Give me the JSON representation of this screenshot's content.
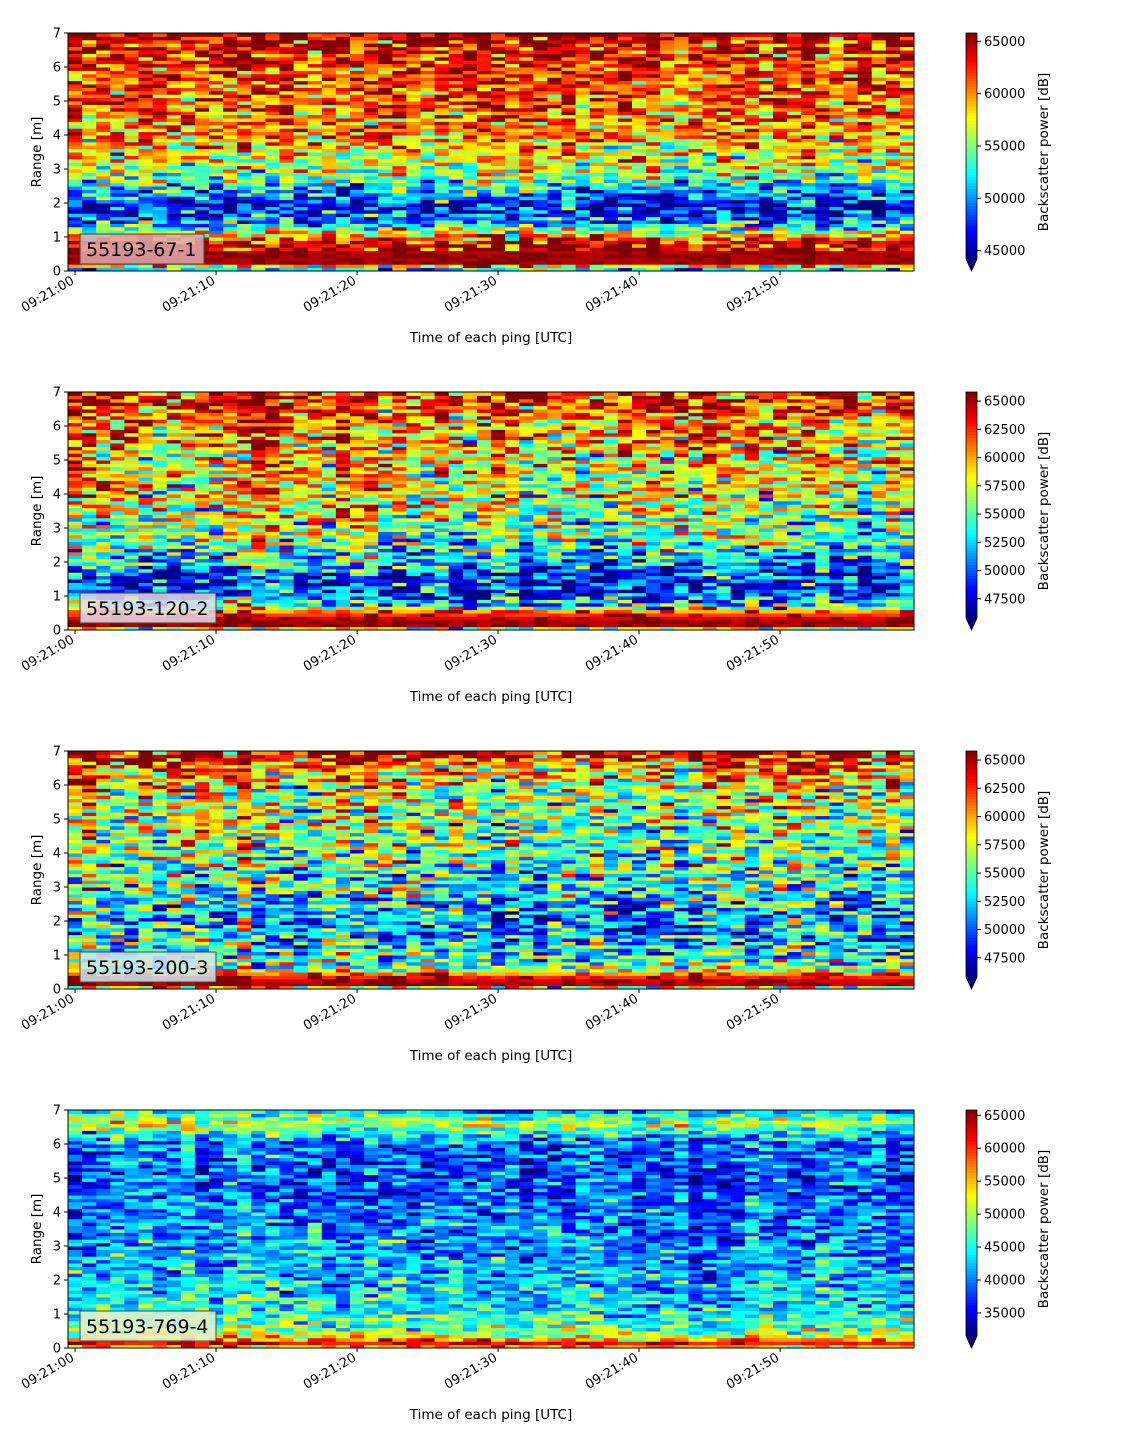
{
  "figure": {
    "x_tick_labels": [
      "09:21:00",
      "09:21:10",
      "09:21:20",
      "09:21:30",
      "09:21:40",
      "09:21:50"
    ],
    "xlabel": "Time of each ping [UTC]",
    "ylabel": "Range [m]",
    "colorbar_label": "Backscatter power [dB]",
    "colormap": "jet",
    "colormap_stops": [
      "#00007f",
      "#0000ff",
      "#007fff",
      "#00ffff",
      "#7fff7f",
      "#ffff00",
      "#ff7f00",
      "#ff0000",
      "#7f0000"
    ]
  },
  "chart_data": [
    {
      "type": "heatmap",
      "label": "55193-67-1",
      "label_box_color": "#e0aab0",
      "xlabel": "Time of each ping [UTC]",
      "ylabel": "Range [m]",
      "ylim": [
        0,
        7
      ],
      "yticks": [
        0,
        1,
        2,
        3,
        4,
        5,
        6,
        7
      ],
      "xlim": [
        "09:21:00",
        "09:21:59"
      ],
      "x_ticks": [
        "09:21:00",
        "09:21:10",
        "09:21:20",
        "09:21:30",
        "09:21:40",
        "09:21:50"
      ],
      "colorbar": {
        "label": "Backscatter power [dB]",
        "vmin": 44200,
        "vmax": 65800,
        "ticks": [
          45000,
          50000,
          55000,
          60000,
          65000
        ],
        "extend": "min"
      },
      "range_profile_m": [
        0,
        0.25,
        0.5,
        0.8,
        1.0,
        1.1,
        1.3,
        1.6,
        1.9,
        2.2,
        2.6,
        3.0,
        3.5,
        4.0,
        4.5,
        5.0,
        5.5,
        6.0,
        6.5,
        6.8,
        7.0
      ],
      "mean_power_profile": [
        48000,
        65500,
        65500,
        65000,
        62000,
        58000,
        53000,
        49000,
        47000,
        49500,
        53500,
        56500,
        59000,
        60500,
        61000,
        61500,
        62000,
        62500,
        63500,
        65000,
        65500
      ],
      "power_spread": 3500
    },
    {
      "type": "heatmap",
      "label": "55193-120-2",
      "label_box_color": "#e6dcea",
      "xlabel": "Time of each ping [UTC]",
      "ylabel": "Range [m]",
      "ylim": [
        0,
        7
      ],
      "yticks": [
        0,
        1,
        2,
        3,
        4,
        5,
        6,
        7
      ],
      "xlim": [
        "09:21:00",
        "09:21:59"
      ],
      "x_ticks": [
        "09:21:00",
        "09:21:10",
        "09:21:20",
        "09:21:30",
        "09:21:40",
        "09:21:50"
      ],
      "colorbar": {
        "label": "Backscatter power [dB]",
        "vmin": 45800,
        "vmax": 65800,
        "ticks": [
          47500,
          50000,
          52500,
          55000,
          57500,
          60000,
          62500,
          65000
        ],
        "extend": "min"
      },
      "range_profile_m": [
        0,
        0.1,
        0.3,
        0.5,
        0.7,
        1.0,
        1.3,
        1.6,
        1.9,
        2.2,
        2.6,
        3.0,
        3.5,
        4.0,
        4.5,
        5.0,
        5.5,
        6.0,
        6.5,
        6.8,
        7.0
      ],
      "mean_power_profile": [
        50000,
        65500,
        65500,
        62000,
        55000,
        50500,
        49500,
        50000,
        51500,
        53500,
        55000,
        56500,
        57500,
        58500,
        59000,
        59500,
        60000,
        61000,
        62500,
        64000,
        65000
      ],
      "power_spread": 3800
    },
    {
      "type": "heatmap",
      "label": "55193-200-3",
      "label_box_color": "#cfe6f0",
      "xlabel": "Time of each ping [UTC]",
      "ylabel": "Range [m]",
      "ylim": [
        0,
        7
      ],
      "yticks": [
        0,
        1,
        2,
        3,
        4,
        5,
        6,
        7
      ],
      "xlim": [
        "09:21:00",
        "09:21:59"
      ],
      "x_ticks": [
        "09:21:00",
        "09:21:10",
        "09:21:20",
        "09:21:30",
        "09:21:40",
        "09:21:50"
      ],
      "colorbar": {
        "label": "Backscatter power [dB]",
        "vmin": 45800,
        "vmax": 65800,
        "ticks": [
          47500,
          50000,
          52500,
          55000,
          57500,
          60000,
          62500,
          65000
        ],
        "extend": "min"
      },
      "range_profile_m": [
        0,
        0.1,
        0.3,
        0.5,
        0.7,
        1.0,
        1.3,
        1.6,
        1.9,
        2.2,
        2.6,
        3.0,
        3.5,
        4.0,
        4.5,
        5.0,
        5.5,
        6.0,
        6.5,
        6.8,
        7.0
      ],
      "mean_power_profile": [
        52000,
        65500,
        64500,
        59000,
        55500,
        54000,
        53000,
        52500,
        52000,
        52500,
        53500,
        54500,
        55000,
        56000,
        56500,
        57000,
        57500,
        58500,
        60500,
        63500,
        64500
      ],
      "power_spread": 3800
    },
    {
      "type": "heatmap",
      "label": "55193-769-4",
      "label_box_color": "#e8f0cf",
      "xlabel": "Time of each ping [UTC]",
      "ylabel": "Range [m]",
      "ylim": [
        0,
        7
      ],
      "yticks": [
        0,
        1,
        2,
        3,
        4,
        5,
        6,
        7
      ],
      "xlim": [
        "09:21:00",
        "09:21:59"
      ],
      "x_ticks": [
        "09:21:00",
        "09:21:10",
        "09:21:20",
        "09:21:30",
        "09:21:40",
        "09:21:50"
      ],
      "colorbar": {
        "label": "Backscatter power [dB]",
        "vmin": 31500,
        "vmax": 65800,
        "ticks": [
          35000,
          40000,
          45000,
          50000,
          55000,
          60000,
          65000
        ],
        "extend": "min"
      },
      "range_profile_m": [
        0,
        0.1,
        0.2,
        0.3,
        0.5,
        0.8,
        1.0,
        1.5,
        2.0,
        2.5,
        3.0,
        3.5,
        4.0,
        4.5,
        5.0,
        5.5,
        6.0,
        6.3,
        6.6,
        6.8,
        7.0
      ],
      "mean_power_profile": [
        52000,
        60000,
        62000,
        54000,
        48500,
        47000,
        45500,
        44000,
        43000,
        42000,
        41000,
        40500,
        40000,
        39500,
        39000,
        38500,
        40000,
        44000,
        52000,
        47000,
        42000
      ],
      "power_spread": 4000
    }
  ]
}
